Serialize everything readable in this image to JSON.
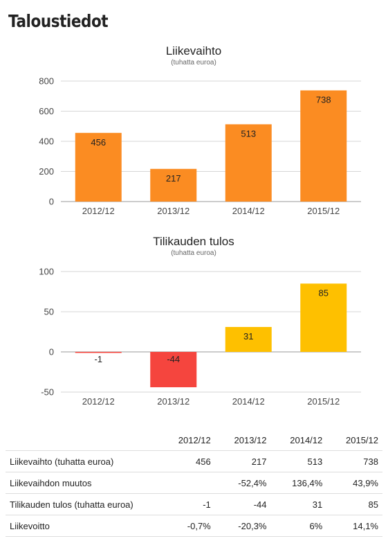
{
  "page": {
    "title": "Taloustiedot"
  },
  "chart_data": [
    {
      "type": "bar",
      "title": "Liikevaihto",
      "subtitle": "(tuhatta euroa)",
      "categories": [
        "2012/12",
        "2013/12",
        "2014/12",
        "2015/12"
      ],
      "values": [
        456,
        217,
        513,
        738
      ],
      "ylim": [
        0,
        800
      ],
      "yticks": [
        0,
        200,
        400,
        600,
        800
      ],
      "grid": true,
      "colors": [
        "#fb8c22",
        "#fb8c22",
        "#fb8c22",
        "#fb8c22"
      ]
    },
    {
      "type": "bar",
      "title": "Tilikauden tulos",
      "subtitle": "(tuhatta euroa)",
      "categories": [
        "2012/12",
        "2013/12",
        "2014/12",
        "2015/12"
      ],
      "values": [
        -1,
        -44,
        31,
        85
      ],
      "ylim": [
        -50,
        100
      ],
      "yticks": [
        -50,
        0,
        50,
        100
      ],
      "grid": true,
      "colors": [
        "#f5453e",
        "#f5453e",
        "#fec000",
        "#fec000"
      ]
    }
  ],
  "table": {
    "headers": [
      "",
      "2012/12",
      "2013/12",
      "2014/12",
      "2015/12"
    ],
    "rows": [
      {
        "label": "Liikevaihto (tuhatta euroa)",
        "values": [
          "456",
          "217",
          "513",
          "738"
        ]
      },
      {
        "label": "Liikevaihdon muutos",
        "values": [
          "",
          "-52,4%",
          "136,4%",
          "43,9%"
        ]
      },
      {
        "label": "Tilikauden tulos (tuhatta euroa)",
        "values": [
          "-1",
          "-44",
          "31",
          "85"
        ]
      },
      {
        "label": "Liikevoitto",
        "values": [
          "-0,7%",
          "-20,3%",
          "6%",
          "14,1%"
        ]
      }
    ]
  }
}
